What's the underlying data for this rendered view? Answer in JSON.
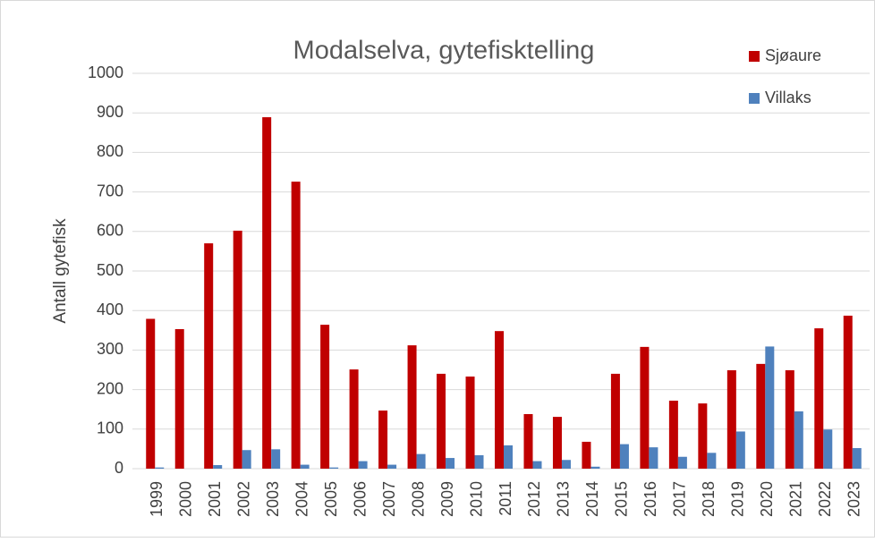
{
  "chart_data": {
    "type": "bar",
    "title": "Modalselva, gytefisktelling",
    "y_label": "Antall gytefisk",
    "categories": [
      "1999",
      "2000",
      "2001",
      "2002",
      "2003",
      "2004",
      "2005",
      "2006",
      "2007",
      "2008",
      "2009",
      "2010",
      "2011",
      "2012",
      "2013",
      "2014",
      "2015",
      "2016",
      "2017",
      "2018",
      "2019",
      "2020",
      "2021",
      "2022",
      "2023"
    ],
    "series": [
      {
        "name": "Sjøaure",
        "color": "#c00000",
        "values": [
          379,
          353,
          570,
          602,
          889,
          726,
          364,
          251,
          147,
          312,
          240,
          233,
          348,
          138,
          131,
          68,
          240,
          308,
          172,
          165,
          249,
          265,
          249,
          355,
          387
        ]
      },
      {
        "name": "Villaks",
        "color": "#4f81bd",
        "values": [
          3,
          0,
          9,
          47,
          49,
          10,
          3,
          19,
          10,
          37,
          27,
          34,
          59,
          19,
          22,
          5,
          62,
          54,
          30,
          40,
          94,
          309,
          145,
          99,
          52
        ]
      }
    ],
    "ylim": [
      0,
      1000
    ],
    "yticks": [
      0,
      100,
      200,
      300,
      400,
      500,
      600,
      700,
      800,
      900,
      1000
    ],
    "grid": true,
    "legend": "top-right"
  }
}
